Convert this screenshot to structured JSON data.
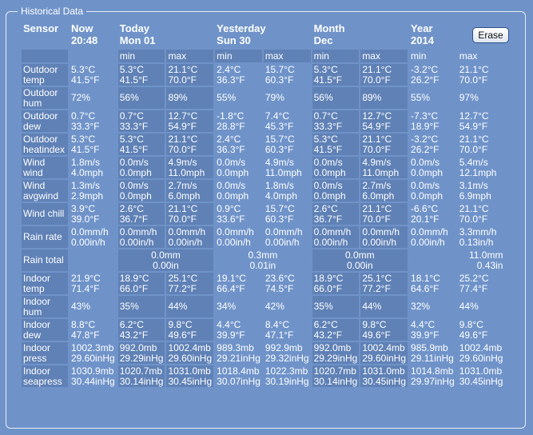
{
  "legend": "Historical Data",
  "erase_label": "Erase",
  "header": {
    "sensor": "Sensor",
    "now": {
      "l1": "Now",
      "l2": "20:48"
    },
    "today": {
      "l1": "Today",
      "l2": "Mon 01"
    },
    "yesterday": {
      "l1": "Yesterday",
      "l2": "Sun 30"
    },
    "month": {
      "l1": "Month",
      "l2": "Dec"
    },
    "year": {
      "l1": "Year",
      "l2": "2014"
    }
  },
  "sub": {
    "min": "min",
    "max": "max"
  },
  "rows": [
    {
      "label": "Outdoor temp",
      "now": [
        "5.3°C",
        "41.5°F"
      ],
      "cells": [
        [
          "5.3°C",
          "41.5°F"
        ],
        [
          "21.1°C",
          "70.0°F"
        ],
        [
          "2.4°C",
          "36.3°F"
        ],
        [
          "15.7°C",
          "60.3°F"
        ],
        [
          "5.3°C",
          "41.5°F"
        ],
        [
          "21.1°C",
          "70.0°F"
        ],
        [
          "-3.2°C",
          "26.2°F"
        ],
        [
          "21.1°C",
          "70.0°F"
        ]
      ]
    },
    {
      "label": "Outdoor hum",
      "now": [
        "72%"
      ],
      "cells": [
        [
          "56%"
        ],
        [
          "89%"
        ],
        [
          "55%"
        ],
        [
          "79%"
        ],
        [
          "56%"
        ],
        [
          "89%"
        ],
        [
          "55%"
        ],
        [
          "97%"
        ]
      ]
    },
    {
      "label": "Outdoor dew",
      "now": [
        "0.7°C",
        "33.3°F"
      ],
      "cells": [
        [
          "0.7°C",
          "33.3°F"
        ],
        [
          "12.7°C",
          "54.9°F"
        ],
        [
          "-1.8°C",
          "28.8°F"
        ],
        [
          "7.4°C",
          "45.3°F"
        ],
        [
          "0.7°C",
          "33.3°F"
        ],
        [
          "12.7°C",
          "54.9°F"
        ],
        [
          "-7.3°C",
          "18.9°F"
        ],
        [
          "12.7°C",
          "54.9°F"
        ]
      ]
    },
    {
      "label": "Outdoor heatindex",
      "now": [
        "5.3°C",
        "41.5°F"
      ],
      "cells": [
        [
          "5.3°C",
          "41.5°F"
        ],
        [
          "21.1°C",
          "70.0°F"
        ],
        [
          "2.4°C",
          "36.3°F"
        ],
        [
          "15.7°C",
          "60.3°F"
        ],
        [
          "5.3°C",
          "41.5°F"
        ],
        [
          "21.1°C",
          "70.0°F"
        ],
        [
          "-3.2°C",
          "26.2°F"
        ],
        [
          "21.1°C",
          "70.0°F"
        ]
      ]
    },
    {
      "label": "Wind wind",
      "now": [
        "1.8m/s",
        "4.0mph"
      ],
      "cells": [
        [
          "0.0m/s",
          "0.0mph"
        ],
        [
          "4.9m/s",
          "11.0mph"
        ],
        [
          "0.0m/s",
          "0.0mph"
        ],
        [
          "4.9m/s",
          "11.0mph"
        ],
        [
          "0.0m/s",
          "0.0mph"
        ],
        [
          "4.9m/s",
          "11.0mph"
        ],
        [
          "0.0m/s",
          "0.0mph"
        ],
        [
          "5.4m/s",
          "12.1mph"
        ]
      ]
    },
    {
      "label": "Wind avgwind",
      "now": [
        "1.3m/s",
        "2.9mph"
      ],
      "cells": [
        [
          "0.0m/s",
          "0.0mph"
        ],
        [
          "2.7m/s",
          "6.0mph"
        ],
        [
          "0.0m/s",
          "0.0mph"
        ],
        [
          "1.8m/s",
          "4.0mph"
        ],
        [
          "0.0m/s",
          "0.0mph"
        ],
        [
          "2.7m/s",
          "6.0mph"
        ],
        [
          "0.0m/s",
          "0.0mph"
        ],
        [
          "3.1m/s",
          "6.9mph"
        ]
      ]
    },
    {
      "label": "Wind chill",
      "now": [
        "3.9°C",
        "39.0°F"
      ],
      "cells": [
        [
          "2.6°C",
          "36.7°F"
        ],
        [
          "21.1°C",
          "70.0°F"
        ],
        [
          "0.9°C",
          "33.6°F"
        ],
        [
          "15.7°C",
          "60.3°F"
        ],
        [
          "2.6°C",
          "36.7°F"
        ],
        [
          "21.1°C",
          "70.0°F"
        ],
        [
          "-6.6°C",
          "20.1°F"
        ],
        [
          "21.1°C",
          "70.0°F"
        ]
      ]
    },
    {
      "label": "Rain rate",
      "now": [
        "0.0mm/h",
        "0.00in/h"
      ],
      "cells": [
        [
          "0.0mm/h",
          "0.00in/h"
        ],
        [
          "0.0mm/h",
          "0.00in/h"
        ],
        [
          "0.0mm/h",
          "0.00in/h"
        ],
        [
          "0.0mm/h",
          "0.00in/h"
        ],
        [
          "0.0mm/h",
          "0.00in/h"
        ],
        [
          "0.0mm/h",
          "0.00in/h"
        ],
        [
          "0.0mm/h",
          "0.00in/h"
        ],
        [
          "3.3mm/h",
          "0.13in/h"
        ]
      ]
    },
    {
      "label": "Rain total",
      "total": true,
      "now": [],
      "cells": [
        [
          "0.0mm",
          "0.00in"
        ],
        [
          "0.3mm",
          "0.01in"
        ],
        [
          "0.0mm",
          "0.00in"
        ],
        [
          "11.0mm",
          "0.43in"
        ]
      ]
    },
    {
      "label": "Indoor temp",
      "now": [
        "21.9°C",
        "71.4°F"
      ],
      "cells": [
        [
          "18.9°C",
          "66.0°F"
        ],
        [
          "25.1°C",
          "77.2°F"
        ],
        [
          "19.1°C",
          "66.4°F"
        ],
        [
          "23.6°C",
          "74.5°F"
        ],
        [
          "18.9°C",
          "66.0°F"
        ],
        [
          "25.1°C",
          "77.2°F"
        ],
        [
          "18.1°C",
          "64.6°F"
        ],
        [
          "25.2°C",
          "77.4°F"
        ]
      ]
    },
    {
      "label": "Indoor hum",
      "now": [
        "43%"
      ],
      "cells": [
        [
          "35%"
        ],
        [
          "44%"
        ],
        [
          "34%"
        ],
        [
          "42%"
        ],
        [
          "35%"
        ],
        [
          "44%"
        ],
        [
          "32%"
        ],
        [
          "44%"
        ]
      ]
    },
    {
      "label": "Indoor dew",
      "now": [
        "8.8°C",
        "47.8°F"
      ],
      "cells": [
        [
          "6.2°C",
          "43.2°F"
        ],
        [
          "9.8°C",
          "49.6°F"
        ],
        [
          "4.4°C",
          "39.9°F"
        ],
        [
          "8.4°C",
          "47.1°F"
        ],
        [
          "6.2°C",
          "43.2°F"
        ],
        [
          "9.8°C",
          "49.6°F"
        ],
        [
          "4.4°C",
          "39.9°F"
        ],
        [
          "9.8°C",
          "49.6°F"
        ]
      ]
    },
    {
      "label": "Indoor press",
      "now": [
        "1002.3mb",
        "29.60inHg"
      ],
      "cells": [
        [
          "992.0mb",
          "29.29inHg"
        ],
        [
          "1002.4mb",
          "29.60inHg"
        ],
        [
          "989.3mb",
          "29.21inHg"
        ],
        [
          "992.9mb",
          "29.32inHg"
        ],
        [
          "992.0mb",
          "29.29inHg"
        ],
        [
          "1002.4mb",
          "29.60inHg"
        ],
        [
          "985.9mb",
          "29.11inHg"
        ],
        [
          "1002.4mb",
          "29.60inHg"
        ]
      ]
    },
    {
      "label": "Indoor seapress",
      "now": [
        "1030.9mb",
        "30.44inHg"
      ],
      "cells": [
        [
          "1020.7mb",
          "30.14inHg"
        ],
        [
          "1031.0mb",
          "30.45inHg"
        ],
        [
          "1018.4mb",
          "30.07inHg"
        ],
        [
          "1022.3mb",
          "30.19inHg"
        ],
        [
          "1020.7mb",
          "30.14inHg"
        ],
        [
          "1031.0mb",
          "30.45inHg"
        ],
        [
          "1014.8mb",
          "29.97inHg"
        ],
        [
          "1031.0mb",
          "30.45inHg"
        ]
      ]
    }
  ]
}
